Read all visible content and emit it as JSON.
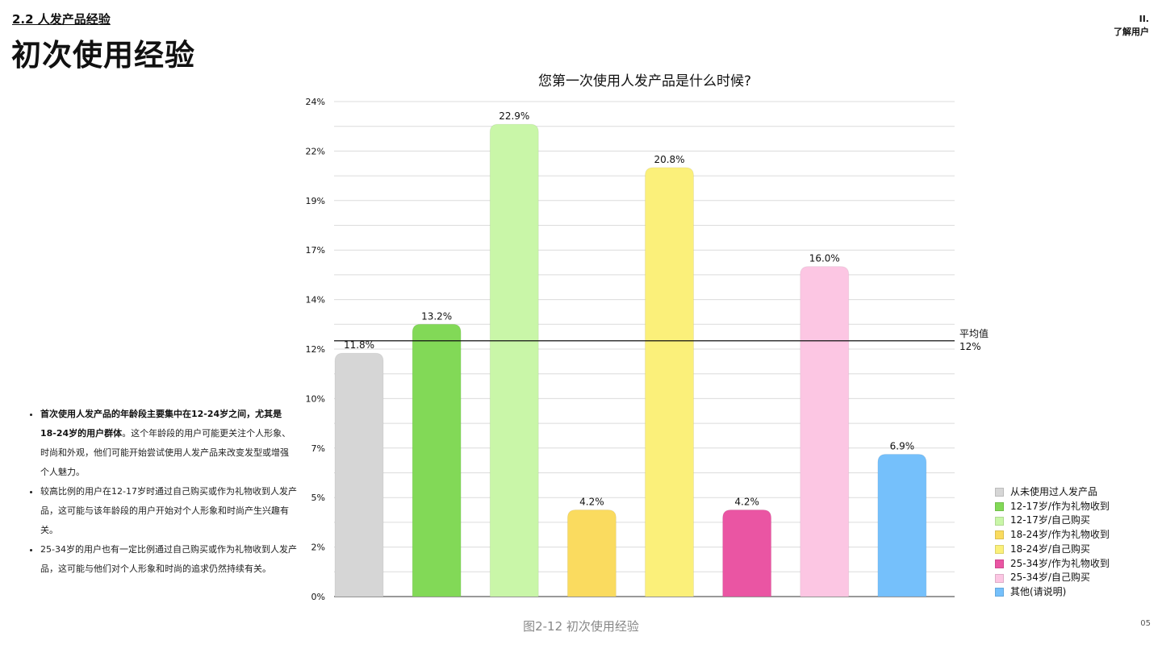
{
  "header": {
    "section": "2.2 人发产品经验",
    "title": "初次使用经验",
    "chapter_num": "II.",
    "chapter_name": "了解用户"
  },
  "notes": [
    {
      "bold": "首次使用人发产品的年龄段主要集中在12-24岁之间，尤其是18-24岁的用户群体",
      "text": "。这个年龄段的用户可能更关注个人形象、时尚和外观，他们可能开始尝试使用人发产品来改变发型或增强个人魅力。"
    },
    {
      "bold": "",
      "text": "较高比例的用户在12-17岁时通过自己购买或作为礼物收到人发产品，这可能与该年龄段的用户开始对个人形象和时尚产生兴趣有关。"
    },
    {
      "bold": "",
      "text": "25-34岁的用户也有一定比例通过自己购买或作为礼物收到人发产品，这可能与他们对个人形象和时尚的追求仍然持续有关。"
    }
  ],
  "footer": {
    "caption": "图2-12 初次使用经验",
    "page": "05"
  },
  "chart_data": {
    "type": "bar",
    "title": "您第一次使用人发产品是什么时候?",
    "categories": [
      "从未使用过人发产品",
      "12-17岁/作为礼物收到",
      "12-17岁/自己购买",
      "18-24岁/作为礼物收到",
      "18-24岁/自己购买",
      "25-34岁/作为礼物收到",
      "25-34岁/自己购买",
      "其他(请说明)"
    ],
    "values": [
      11.8,
      13.2,
      22.9,
      4.2,
      20.8,
      4.2,
      16.0,
      6.9
    ],
    "value_labels": [
      "11.8%",
      "13.2%",
      "22.9%",
      "4.2%",
      "20.8%",
      "4.2%",
      "16.0%",
      "6.9%"
    ],
    "colors": [
      "#d6d6d6",
      "#82d957",
      "#c9f6a8",
      "#fadb5f",
      "#fbf07a",
      "#ea55a3",
      "#fcc6e3",
      "#75c0fb"
    ],
    "ylim": [
      0,
      24
    ],
    "y_ticks": [
      0,
      2.4,
      4.8,
      7.2,
      9.6,
      12,
      14.4,
      16.8,
      19.2,
      21.6,
      24
    ],
    "y_tick_labels": [
      "0%",
      "2%",
      "5%",
      "7%",
      "10%",
      "12%",
      "14%",
      "17%",
      "19%",
      "22%",
      "24%"
    ],
    "grid": true,
    "average": {
      "value": 12.4,
      "label": "平均值",
      "value_label": "12%"
    },
    "legend_position": "bottom-right"
  }
}
